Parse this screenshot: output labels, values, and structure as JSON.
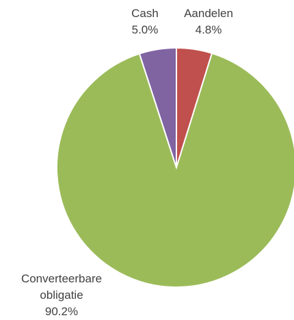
{
  "chart_data": {
    "type": "pie",
    "categories": [
      "Aandelen",
      "Converteerbare obligatie",
      "Cash"
    ],
    "values": [
      4.8,
      90.2,
      5.0
    ],
    "value_labels": [
      "4.8%",
      "90.2%",
      "5.0%"
    ],
    "colors": [
      "#c0504d",
      "#9bbb59",
      "#8064a2"
    ]
  }
}
